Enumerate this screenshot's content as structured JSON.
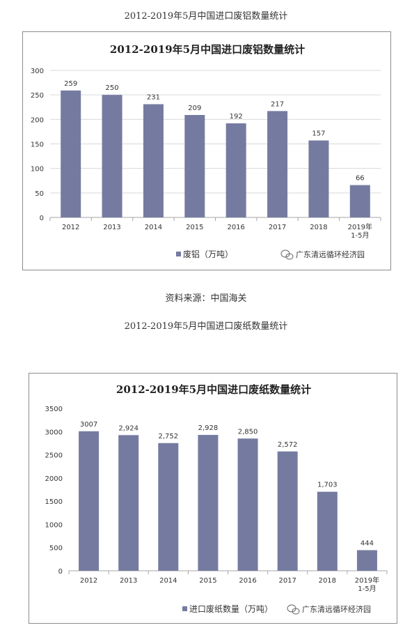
{
  "captions": {
    "chart1": "2012-2019年5月中国进口废铝数量统计",
    "source": "资料来源：中国海关",
    "chart2": "2012-2019年5月中国进口废纸数量统计"
  },
  "watermark": {
    "text": "广东清远循环经济园",
    "icon": "wechat-icon"
  },
  "colors": {
    "bar": "#757ba0",
    "grid": "#d9d9d9",
    "axis": "#a6a6a6"
  },
  "chart_data": [
    {
      "type": "bar",
      "title": "2012-2019年5月中国进口废铝数量统计",
      "categories": [
        "2012",
        "2013",
        "2014",
        "2015",
        "2016",
        "2017",
        "2018",
        "2019年\n1-5月"
      ],
      "series": [
        {
          "name": "废铝（万吨）",
          "values": [
            259,
            250,
            231,
            209,
            192,
            217,
            157,
            66
          ],
          "labels": [
            "259",
            "250",
            "231",
            "209",
            "192",
            "217",
            "157",
            "66"
          ]
        }
      ],
      "ylim": [
        0,
        300
      ],
      "yticks": [
        0,
        50,
        100,
        150,
        200,
        250,
        300
      ],
      "grid": true,
      "legend": "bottom-left"
    },
    {
      "type": "bar",
      "title": "2012-2019年5月中国进口废纸数量统计",
      "categories": [
        "2012",
        "2013",
        "2014",
        "2015",
        "2016",
        "2017",
        "2018",
        "2019年\n1-5月"
      ],
      "series": [
        {
          "name": "进口废纸数量（万吨）",
          "values": [
            3007,
            2924,
            2752,
            2928,
            2850,
            2572,
            1703,
            444
          ],
          "labels": [
            "3007",
            "2,924",
            "2,752",
            "2,928",
            "2,850",
            "2,572",
            "1,703",
            "444"
          ]
        }
      ],
      "ylim": [
        0,
        3500
      ],
      "yticks": [
        0,
        500,
        1000,
        1500,
        2000,
        2500,
        3000,
        3500
      ],
      "grid": false,
      "legend": "bottom-left"
    }
  ]
}
